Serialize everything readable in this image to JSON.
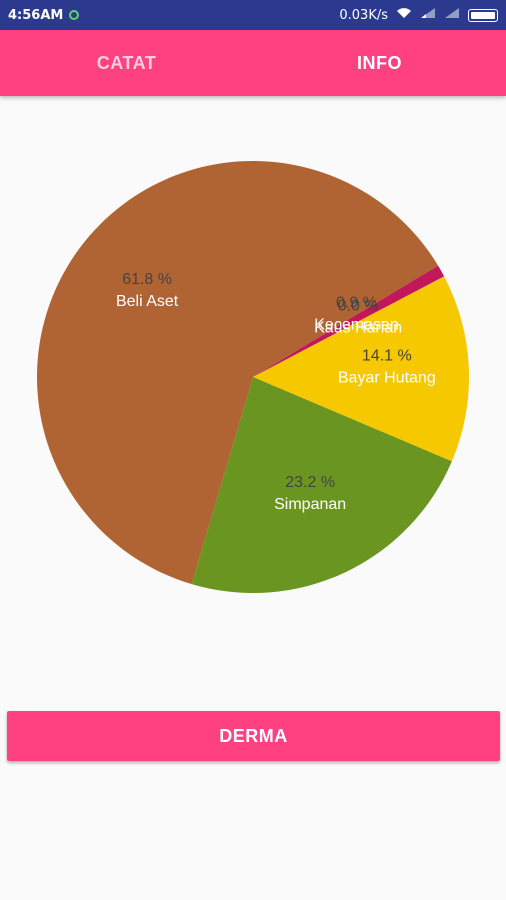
{
  "status_bar": {
    "time": "4:56AM",
    "speed": "0.03K/s"
  },
  "tabs": [
    {
      "label": "CATAT",
      "active": false
    },
    {
      "label": "INFO",
      "active": true
    }
  ],
  "chart_data": {
    "type": "pie",
    "slices": [
      {
        "label": "Beli Aset",
        "value": 61.8,
        "display": "61.8 %",
        "color": "#b06434"
      },
      {
        "label": "Kecemasan",
        "value": 0.9,
        "display": "0.9 %",
        "color": "#c2185b"
      },
      {
        "label": "Kaus Harian",
        "value": 0.0,
        "display": "0.0 %",
        "color": "#e8e8e8"
      },
      {
        "label": "Bayar Hutang",
        "value": 14.1,
        "display": "14.1 %",
        "color": "#f5c800"
      },
      {
        "label": "Simpanan",
        "value": 23.2,
        "display": "23.2 %",
        "color": "#6a9520"
      }
    ]
  },
  "button": {
    "label": "DERMA"
  }
}
